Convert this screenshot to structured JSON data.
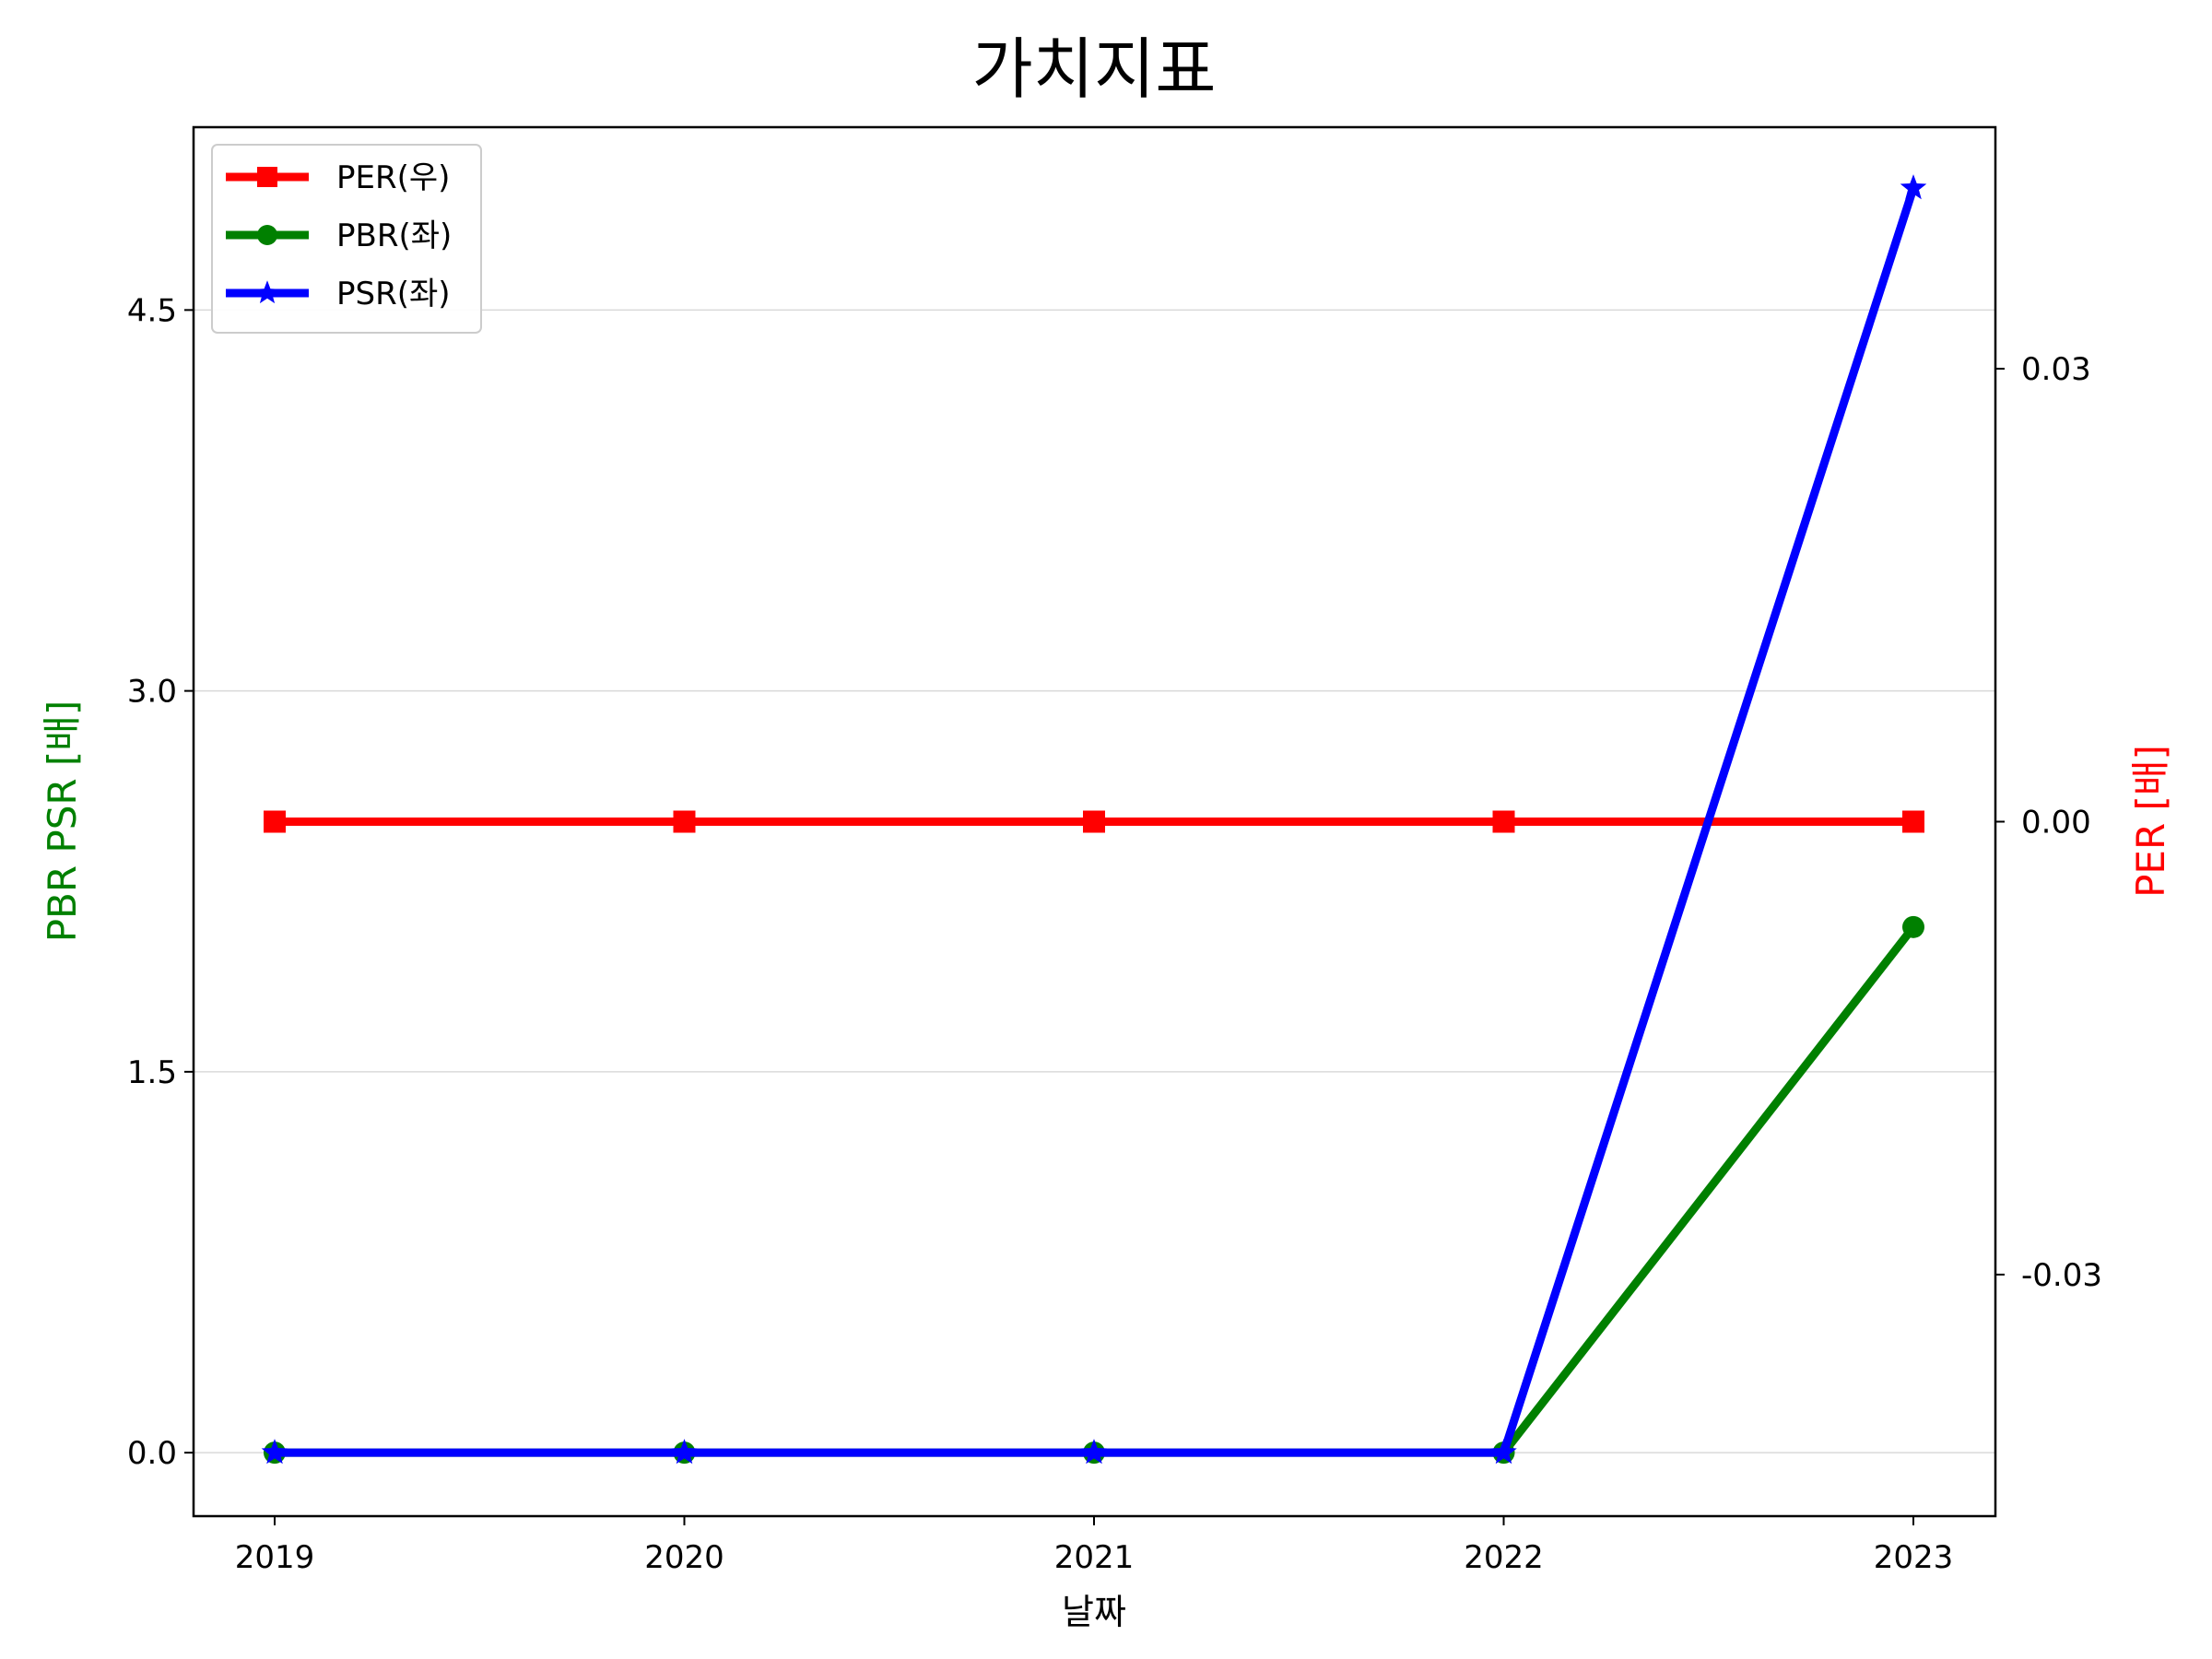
{
  "chart_data": {
    "type": "line",
    "title": "가치지표",
    "xlabel": "날짜",
    "ylabel_left": "PBR PSR [배]",
    "ylabel_right": "PER [배]",
    "categories": [
      "2019",
      "2020",
      "2021",
      "2022",
      "2023"
    ],
    "ylim_left": [
      -0.25,
      5.22
    ],
    "yticks_left": [
      "0.0",
      "1.5",
      "3.0",
      "4.5"
    ],
    "ylim_right": [
      -0.046,
      0.046
    ],
    "yticks_right": [
      "-0.03",
      "0.00",
      "0.03"
    ],
    "grid": true,
    "legend_position": "upper-left",
    "series": [
      {
        "name": "PER(우)",
        "axis": "right",
        "color": "#ff0000",
        "marker": "square",
        "values": [
          0,
          0,
          0,
          0,
          0
        ]
      },
      {
        "name": "PBR(좌)",
        "axis": "left",
        "color": "#008000",
        "marker": "circle",
        "values": [
          0,
          0,
          0,
          0,
          2.07
        ]
      },
      {
        "name": "PSR(좌)",
        "axis": "left",
        "color": "#0000ff",
        "marker": "star",
        "values": [
          0,
          0,
          0,
          0,
          4.98
        ]
      }
    ]
  }
}
